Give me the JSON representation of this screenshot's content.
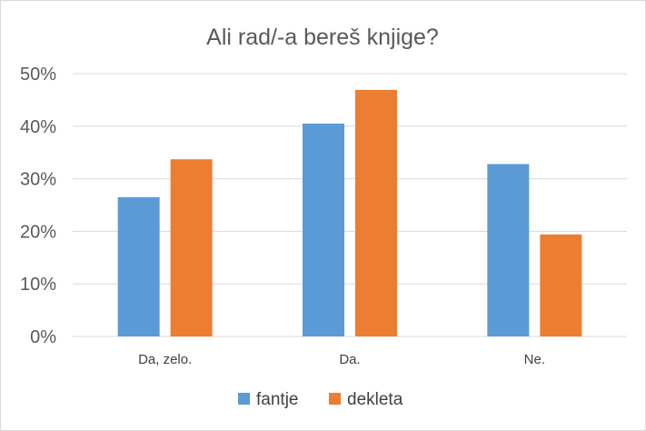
{
  "chart_data": {
    "type": "bar",
    "title": "Ali rad/-a bereš knjige?",
    "categories": [
      "Da, zelo.",
      "Da.",
      "Ne."
    ],
    "series": [
      {
        "name": "fantje",
        "values": [
          26.5,
          40.5,
          32.8
        ]
      },
      {
        "name": "dekleta",
        "values": [
          33.7,
          46.9,
          19.4
        ]
      }
    ],
    "ylim": [
      0,
      50
    ],
    "yticks": [
      0,
      10,
      20,
      30,
      40,
      50
    ],
    "ytick_labels": [
      "0%",
      "10%",
      "20%",
      "30%",
      "40%",
      "50%"
    ],
    "xlabel": "",
    "ylabel": "",
    "grid": true,
    "legend_position": "bottom",
    "colors": [
      "#5b9bd5",
      "#ed7d31"
    ]
  }
}
